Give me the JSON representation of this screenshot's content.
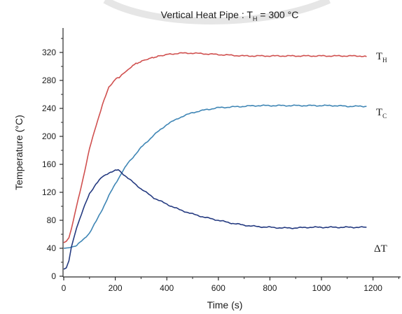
{
  "chart_data": {
    "type": "line",
    "title": {
      "prefix": "Vertical Heat Pipe : T",
      "sub": "H",
      "suffix": " = 300 °C"
    },
    "xlabel": "Time (s)",
    "ylabel": "Temperature (°C)",
    "xlim": [
      0,
      1250
    ],
    "ylim": [
      0,
      355
    ],
    "x_ticks": [
      0,
      200,
      400,
      600,
      800,
      1000,
      1200
    ],
    "y_ticks": [
      0,
      40,
      80,
      120,
      160,
      200,
      240,
      280,
      320
    ],
    "grid": false,
    "series": [
      {
        "name": "T_H",
        "label_main": "T",
        "label_sub": "H",
        "color": "#d0504f",
        "x": [
          0,
          10,
          20,
          30,
          50,
          75,
          100,
          125,
          150,
          175,
          200,
          215,
          230,
          250,
          280,
          320,
          360,
          400,
          450,
          500,
          550,
          600,
          650,
          700,
          750,
          800,
          850,
          900,
          950,
          1000,
          1050,
          1100,
          1150,
          1175
        ],
        "y": [
          48,
          50,
          55,
          68,
          100,
          140,
          182,
          215,
          245,
          270,
          282,
          284,
          290,
          296,
          304,
          310,
          314,
          317,
          319,
          319,
          318,
          317,
          316,
          315,
          315,
          315,
          315,
          315,
          315,
          315,
          315,
          315,
          315,
          314
        ]
      },
      {
        "name": "T_C",
        "label_main": "T",
        "label_sub": "C",
        "color": "#3f86b5",
        "x": [
          0,
          25,
          50,
          75,
          100,
          125,
          150,
          175,
          200,
          225,
          250,
          300,
          350,
          400,
          450,
          500,
          550,
          600,
          650,
          700,
          750,
          800,
          850,
          900,
          950,
          1000,
          1050,
          1100,
          1150,
          1175
        ],
        "y": [
          40,
          41,
          44,
          52,
          62,
          78,
          96,
          115,
          132,
          148,
          162,
          184,
          202,
          217,
          227,
          234,
          238,
          241,
          242,
          243,
          244,
          244,
          244,
          244,
          244,
          244,
          244,
          243,
          243,
          243
        ]
      },
      {
        "name": "ΔT",
        "label_main": "ΔT",
        "label_sub": "",
        "color": "#243a80",
        "x": [
          0,
          10,
          20,
          30,
          50,
          75,
          100,
          125,
          150,
          175,
          200,
          212,
          225,
          250,
          300,
          350,
          400,
          450,
          500,
          550,
          600,
          650,
          700,
          750,
          800,
          850,
          900,
          950,
          1000,
          1050,
          1100,
          1150,
          1175
        ],
        "y": [
          10,
          12,
          22,
          42,
          70,
          95,
          118,
          132,
          142,
          148,
          151,
          152,
          148,
          140,
          125,
          112,
          103,
          95,
          89,
          84,
          80,
          76,
          73,
          71,
          70,
          69,
          69,
          70,
          70,
          70,
          70,
          70,
          70
        ]
      }
    ]
  }
}
